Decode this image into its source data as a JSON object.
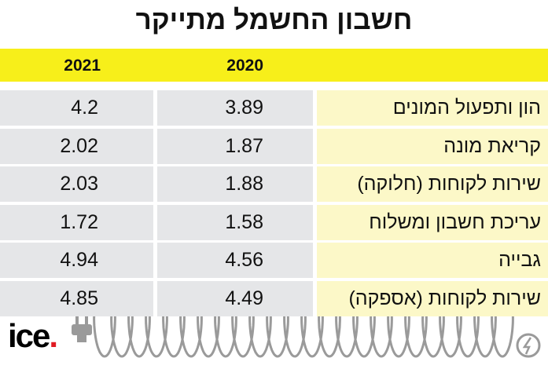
{
  "title": "חשבון החשמל מתייקר",
  "table": {
    "header": [
      "2020",
      "2021"
    ],
    "rows": [
      [
        "הון ותפעול המונים",
        3.89,
        4.2
      ],
      [
        "קריאת מונה",
        1.87,
        2.02
      ],
      [
        "שירות לקוחות (חלוקה)",
        1.88,
        2.03
      ],
      [
        "עריכת חשבון ומשלוח",
        1.58,
        1.72
      ],
      [
        "גבייה",
        4.56,
        4.94
      ],
      [
        "שירות לקוחות (אספקה)",
        4.49,
        4.85
      ]
    ]
  },
  "logo": "ice"
}
